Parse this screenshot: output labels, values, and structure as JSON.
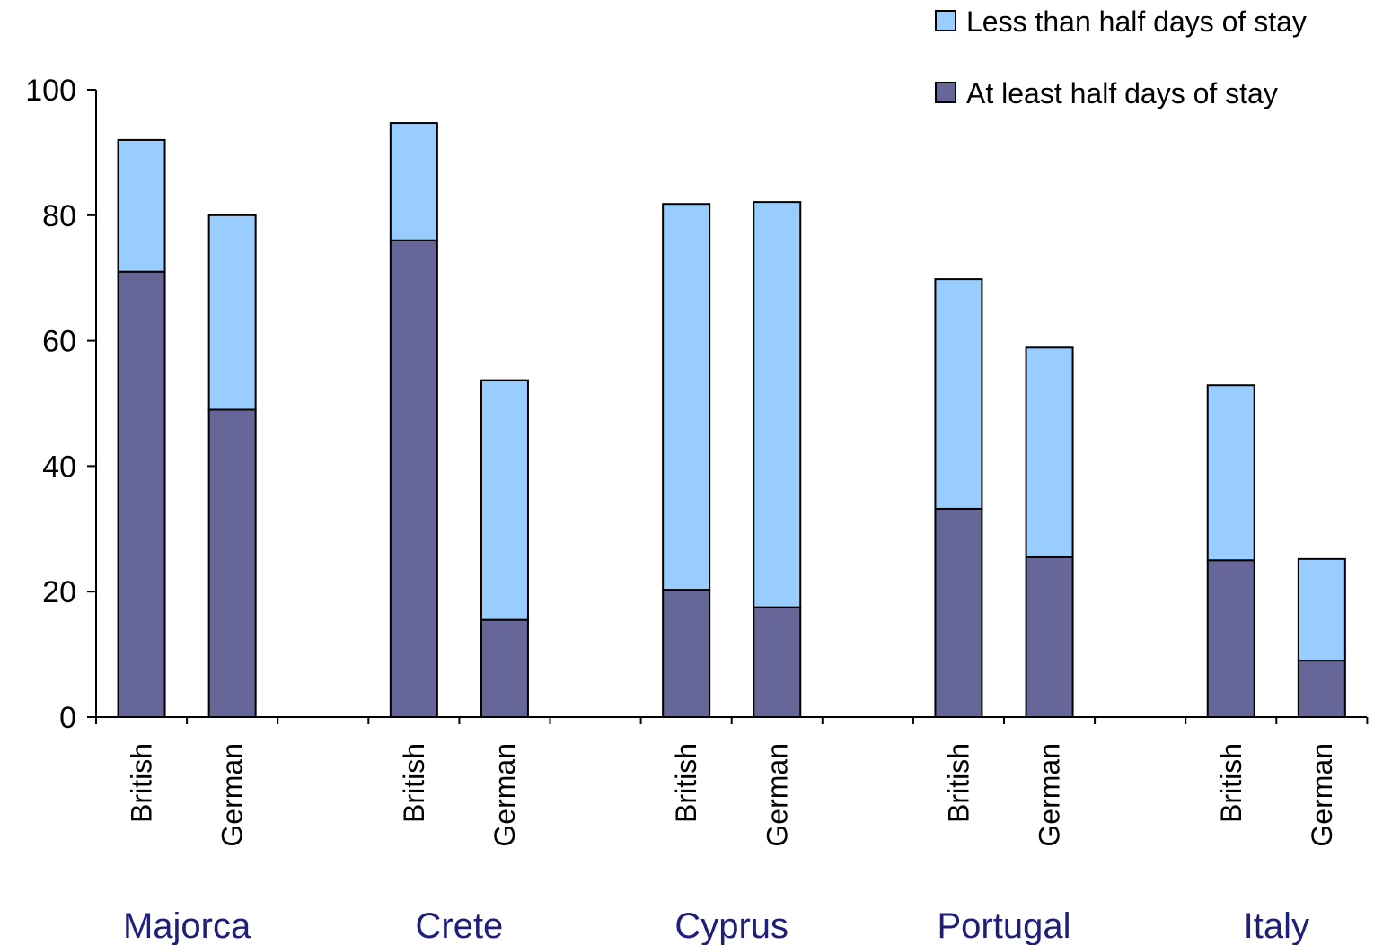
{
  "chart_data": {
    "type": "bar",
    "stacked": true,
    "ylim": [
      0,
      100
    ],
    "yticks": [
      0,
      20,
      40,
      60,
      80,
      100
    ],
    "groups": [
      {
        "label": "Majorca",
        "categories": [
          "British",
          "German"
        ]
      },
      {
        "label": "Crete",
        "categories": [
          "British",
          "German"
        ]
      },
      {
        "label": "Cyprus",
        "categories": [
          "British",
          "German"
        ]
      },
      {
        "label": "Portugal",
        "categories": [
          "British",
          "German"
        ]
      },
      {
        "label": "Italy",
        "categories": [
          "British",
          "German"
        ]
      }
    ],
    "series": [
      {
        "name": "At least half days of stay",
        "color": "#666699",
        "values": [
          71,
          49,
          76,
          15.5,
          20.3,
          17.5,
          33.2,
          25.5,
          25,
          9
        ]
      },
      {
        "name": "Less than half days of stay",
        "color": "#99ccff",
        "values": [
          21,
          31,
          18.7,
          38.2,
          61.5,
          64.6,
          36.6,
          33.4,
          27.9,
          16.2
        ]
      }
    ],
    "legend": {
      "position": "top-right",
      "order": [
        "Less than half days of stay",
        "At least half days of stay"
      ]
    },
    "group_label_color": "#1f1f7a",
    "grid": false
  }
}
